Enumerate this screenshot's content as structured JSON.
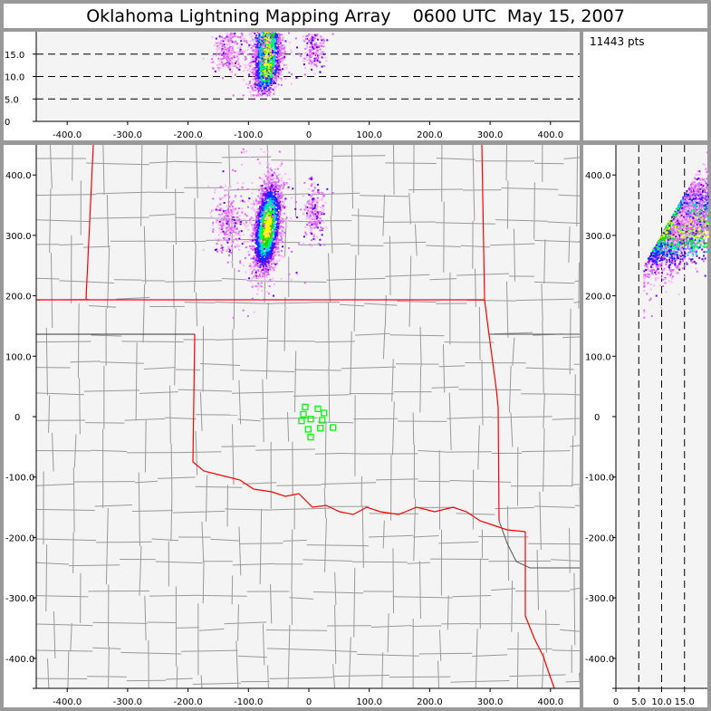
{
  "title": "Oklahoma Lightning Mapping Array    0600 UTC  May 15, 2007",
  "info": {
    "point_count": "11443 pts"
  },
  "colors": {
    "frame": "#999999",
    "plot_bg": "#f4f4f4",
    "state_border": "#ff0000",
    "county_border": "#999999",
    "station": "#00ff00",
    "density_scale": [
      "#ffb3ff",
      "#e066ff",
      "#6600ff",
      "#0033ff",
      "#00ccff",
      "#00ff66",
      "#33cc00",
      "#ffff00"
    ]
  },
  "chart_data": [
    {
      "panel": "altitude-vs-east-west",
      "type": "scatter",
      "xlim": [
        -450,
        450
      ],
      "ylim": [
        0,
        20
      ],
      "x_ticks": [
        "-400.0",
        "-300.0",
        "-200.0",
        "-100.0",
        "0",
        "100.0",
        "200.0",
        "300.0",
        "400.0"
      ],
      "x_tick_values": [
        -400,
        -300,
        -200,
        -100,
        0,
        100,
        200,
        300,
        400
      ],
      "y_ticks": [
        "0",
        "5.0",
        "10.0",
        "15.0"
      ],
      "y_tick_values": [
        0,
        5,
        10,
        15
      ],
      "dashed_reference_lines": [
        5,
        10,
        15
      ]
    },
    {
      "panel": "plan-view-map",
      "type": "scatter",
      "xlim": [
        -450,
        450
      ],
      "ylim": [
        -450,
        450
      ],
      "x_ticks": [
        "-400.0",
        "-300.0",
        "-200.0",
        "-100.0",
        "0",
        "100.0",
        "200.0",
        "300.0",
        "400.0"
      ],
      "x_tick_values": [
        -400,
        -300,
        -200,
        -100,
        0,
        100,
        200,
        300,
        400
      ],
      "y_ticks": [
        "400.0",
        "300.0",
        "200.0",
        "100.0",
        "0",
        "-100.0",
        "-200.0",
        "-300.0",
        "-400.0"
      ],
      "y_tick_values": [
        400,
        300,
        200,
        100,
        0,
        -100,
        -200,
        -300,
        -400
      ],
      "storm_cluster": {
        "center_x_km": -70,
        "center_y_km": 315,
        "spread_x_km": 10,
        "spread_y_km": 35,
        "altitude_range_km": [
          7,
          20
        ]
      },
      "stations_km": [
        [
          -6,
          16
        ],
        [
          -9,
          4
        ],
        [
          15,
          13
        ],
        [
          25,
          6
        ],
        [
          3,
          -4
        ],
        [
          -12,
          -7
        ],
        [
          22,
          -6
        ],
        [
          -1,
          -21
        ],
        [
          19,
          -19
        ],
        [
          40,
          -18
        ],
        [
          3,
          -34
        ]
      ]
    },
    {
      "panel": "north-south-vs-altitude",
      "type": "scatter",
      "xlim": [
        0,
        20
      ],
      "ylim": [
        -450,
        450
      ],
      "x_ticks": [
        "0",
        "5.0",
        "10.0",
        "15.0"
      ],
      "x_tick_values": [
        0,
        5,
        10,
        15
      ],
      "y_ticks": [
        "400.0",
        "300.0",
        "200.0",
        "100.0",
        "0",
        "-100.0",
        "-200.0",
        "-300.0",
        "-400.0"
      ],
      "y_tick_values": [
        400,
        300,
        200,
        100,
        0,
        -100,
        -200,
        -300,
        -400
      ],
      "dashed_reference_lines": [
        5,
        10,
        15
      ]
    }
  ]
}
